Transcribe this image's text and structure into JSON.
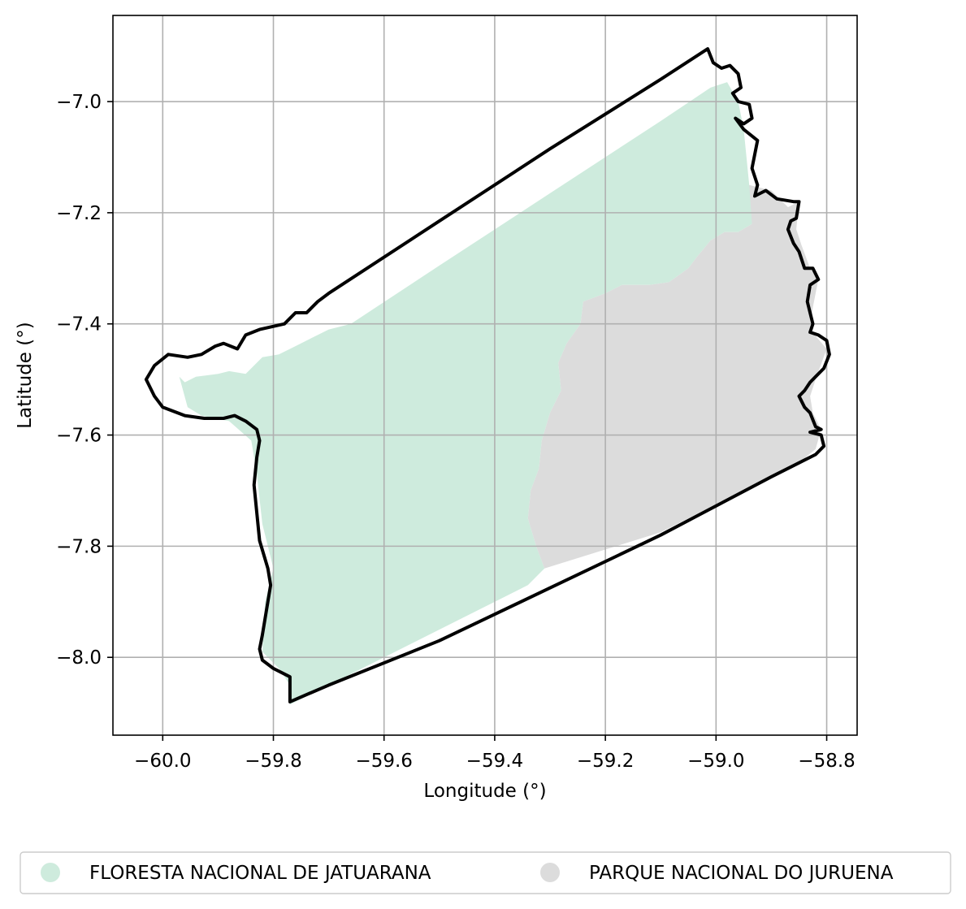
{
  "chart_data": {
    "type": "map",
    "xlabel": "Longitude (°)",
    "ylabel": "Latitude (°)",
    "xlim": [
      -60.09,
      -58.745
    ],
    "ylim": [
      -8.14,
      -6.845
    ],
    "x_ticks": [
      {
        "value": -60.0,
        "label": "−60.0"
      },
      {
        "value": -59.8,
        "label": "−59.8"
      },
      {
        "value": -59.6,
        "label": "−59.6"
      },
      {
        "value": -59.4,
        "label": "−59.4"
      },
      {
        "value": -59.2,
        "label": "−59.2"
      },
      {
        "value": -59.0,
        "label": "−59.0"
      },
      {
        "value": -58.8,
        "label": "−58.8"
      }
    ],
    "y_ticks": [
      {
        "value": -7.0,
        "label": "−7.0"
      },
      {
        "value": -7.2,
        "label": "−7.2"
      },
      {
        "value": -7.4,
        "label": "−7.4"
      },
      {
        "value": -7.6,
        "label": "−7.6"
      },
      {
        "value": -7.8,
        "label": "−7.8"
      },
      {
        "value": -8.0,
        "label": "−8.0"
      }
    ],
    "grid": true,
    "legend_position": "bottom",
    "series": [
      {
        "name": "FLORESTA NACIONAL DE JATUARANA",
        "color": "#ceebdd",
        "polygon": [
          [
            -59.97,
            -7.495
          ],
          [
            -59.96,
            -7.505
          ],
          [
            -59.94,
            -7.495
          ],
          [
            -59.9,
            -7.49
          ],
          [
            -59.88,
            -7.485
          ],
          [
            -59.85,
            -7.49
          ],
          [
            -59.82,
            -7.46
          ],
          [
            -59.79,
            -7.455
          ],
          [
            -59.76,
            -7.44
          ],
          [
            -59.73,
            -7.425
          ],
          [
            -59.7,
            -7.41
          ],
          [
            -59.66,
            -7.4
          ],
          [
            -59.5,
            -7.295
          ],
          [
            -59.3,
            -7.165
          ],
          [
            -59.1,
            -7.035
          ],
          [
            -59.01,
            -6.975
          ],
          [
            -58.98,
            -6.965
          ],
          [
            -58.96,
            -7.0
          ],
          [
            -58.95,
            -7.05
          ],
          [
            -58.945,
            -7.1
          ],
          [
            -58.94,
            -7.15
          ],
          [
            -58.93,
            -7.18
          ],
          [
            -58.935,
            -7.22
          ],
          [
            -58.96,
            -7.235
          ],
          [
            -58.985,
            -7.235
          ],
          [
            -59.01,
            -7.25
          ],
          [
            -59.035,
            -7.28
          ],
          [
            -59.05,
            -7.3
          ],
          [
            -59.085,
            -7.325
          ],
          [
            -59.12,
            -7.33
          ],
          [
            -59.17,
            -7.33
          ],
          [
            -59.2,
            -7.345
          ],
          [
            -59.24,
            -7.36
          ],
          [
            -59.245,
            -7.4
          ],
          [
            -59.27,
            -7.435
          ],
          [
            -59.285,
            -7.47
          ],
          [
            -59.28,
            -7.52
          ],
          [
            -59.3,
            -7.56
          ],
          [
            -59.315,
            -7.61
          ],
          [
            -59.32,
            -7.66
          ],
          [
            -59.335,
            -7.7
          ],
          [
            -59.34,
            -7.75
          ],
          [
            -59.325,
            -7.8
          ],
          [
            -59.31,
            -7.84
          ],
          [
            -59.34,
            -7.87
          ],
          [
            -59.6,
            -8.0
          ],
          [
            -59.77,
            -8.085
          ],
          [
            -59.77,
            -8.05
          ],
          [
            -59.79,
            -8.02
          ],
          [
            -59.82,
            -7.99
          ],
          [
            -59.815,
            -7.9
          ],
          [
            -59.8,
            -7.84
          ],
          [
            -59.82,
            -7.76
          ],
          [
            -59.83,
            -7.67
          ],
          [
            -59.84,
            -7.61
          ],
          [
            -59.88,
            -7.575
          ],
          [
            -59.93,
            -7.565
          ],
          [
            -59.955,
            -7.55
          ]
        ]
      },
      {
        "name": "PARQUE NACIONAL DO JURUENA",
        "color": "#dcdcdc",
        "polygon": [
          [
            -58.935,
            -7.22
          ],
          [
            -58.94,
            -7.15
          ],
          [
            -58.9,
            -7.16
          ],
          [
            -58.87,
            -7.19
          ],
          [
            -58.85,
            -7.18
          ],
          [
            -58.855,
            -7.23
          ],
          [
            -58.845,
            -7.26
          ],
          [
            -58.83,
            -7.3
          ],
          [
            -58.815,
            -7.32
          ],
          [
            -58.825,
            -7.37
          ],
          [
            -58.83,
            -7.41
          ],
          [
            -58.8,
            -7.445
          ],
          [
            -58.82,
            -7.5
          ],
          [
            -58.83,
            -7.53
          ],
          [
            -58.825,
            -7.56
          ],
          [
            -58.81,
            -7.59
          ],
          [
            -58.82,
            -7.625
          ],
          [
            -58.85,
            -7.65
          ],
          [
            -58.86,
            -7.655
          ],
          [
            -58.95,
            -7.7
          ],
          [
            -59.1,
            -7.775
          ],
          [
            -59.31,
            -7.84
          ],
          [
            -59.325,
            -7.8
          ],
          [
            -59.34,
            -7.75
          ],
          [
            -59.335,
            -7.7
          ],
          [
            -59.32,
            -7.66
          ],
          [
            -59.315,
            -7.61
          ],
          [
            -59.3,
            -7.56
          ],
          [
            -59.28,
            -7.52
          ],
          [
            -59.285,
            -7.47
          ],
          [
            -59.27,
            -7.435
          ],
          [
            -59.245,
            -7.4
          ],
          [
            -59.24,
            -7.36
          ],
          [
            -59.2,
            -7.345
          ],
          [
            -59.17,
            -7.33
          ],
          [
            -59.12,
            -7.33
          ],
          [
            -59.085,
            -7.325
          ],
          [
            -59.05,
            -7.3
          ],
          [
            -59.035,
            -7.28
          ],
          [
            -59.01,
            -7.25
          ],
          [
            -58.985,
            -7.235
          ],
          [
            -58.96,
            -7.235
          ]
        ]
      }
    ],
    "outline": {
      "color": "#000000",
      "polygon": [
        [
          -60.03,
          -7.5
        ],
        [
          -60.015,
          -7.475
        ],
        [
          -59.99,
          -7.455
        ],
        [
          -59.955,
          -7.46
        ],
        [
          -59.93,
          -7.455
        ],
        [
          -59.905,
          -7.44
        ],
        [
          -59.89,
          -7.435
        ],
        [
          -59.865,
          -7.445
        ],
        [
          -59.85,
          -7.42
        ],
        [
          -59.825,
          -7.41
        ],
        [
          -59.78,
          -7.4
        ],
        [
          -59.76,
          -7.38
        ],
        [
          -59.74,
          -7.38
        ],
        [
          -59.72,
          -7.36
        ],
        [
          -59.7,
          -7.345
        ],
        [
          -59.5,
          -7.215
        ],
        [
          -59.3,
          -7.085
        ],
        [
          -59.1,
          -6.96
        ],
        [
          -59.015,
          -6.905
        ],
        [
          -59.005,
          -6.93
        ],
        [
          -58.99,
          -6.94
        ],
        [
          -58.975,
          -6.935
        ],
        [
          -58.96,
          -6.95
        ],
        [
          -58.955,
          -6.975
        ],
        [
          -58.97,
          -6.985
        ],
        [
          -58.96,
          -7.0
        ],
        [
          -58.94,
          -7.005
        ],
        [
          -58.935,
          -7.03
        ],
        [
          -58.95,
          -7.04
        ],
        [
          -58.965,
          -7.03
        ],
        [
          -58.95,
          -7.05
        ],
        [
          -58.925,
          -7.07
        ],
        [
          -58.935,
          -7.12
        ],
        [
          -58.925,
          -7.15
        ],
        [
          -58.93,
          -7.17
        ],
        [
          -58.91,
          -7.16
        ],
        [
          -58.89,
          -7.175
        ],
        [
          -58.86,
          -7.18
        ],
        [
          -58.85,
          -7.18
        ],
        [
          -58.855,
          -7.21
        ],
        [
          -58.865,
          -7.215
        ],
        [
          -58.87,
          -7.23
        ],
        [
          -58.86,
          -7.255
        ],
        [
          -58.85,
          -7.27
        ],
        [
          -58.84,
          -7.3
        ],
        [
          -58.825,
          -7.3
        ],
        [
          -58.815,
          -7.32
        ],
        [
          -58.83,
          -7.33
        ],
        [
          -58.835,
          -7.36
        ],
        [
          -58.83,
          -7.38
        ],
        [
          -58.825,
          -7.4
        ],
        [
          -58.83,
          -7.415
        ],
        [
          -58.815,
          -7.42
        ],
        [
          -58.8,
          -7.43
        ],
        [
          -58.795,
          -7.455
        ],
        [
          -58.805,
          -7.48
        ],
        [
          -58.82,
          -7.495
        ],
        [
          -58.83,
          -7.505
        ],
        [
          -58.84,
          -7.52
        ],
        [
          -58.85,
          -7.53
        ],
        [
          -58.84,
          -7.55
        ],
        [
          -58.83,
          -7.56
        ],
        [
          -58.82,
          -7.585
        ],
        [
          -58.81,
          -7.59
        ],
        [
          -58.83,
          -7.595
        ],
        [
          -58.81,
          -7.6
        ],
        [
          -58.805,
          -7.62
        ],
        [
          -58.82,
          -7.635
        ],
        [
          -58.84,
          -7.645
        ],
        [
          -58.86,
          -7.655
        ],
        [
          -58.9,
          -7.675
        ],
        [
          -59.1,
          -7.78
        ],
        [
          -59.3,
          -7.875
        ],
        [
          -59.5,
          -7.97
        ],
        [
          -59.7,
          -8.05
        ],
        [
          -59.77,
          -8.08
        ],
        [
          -59.77,
          -8.035
        ],
        [
          -59.8,
          -8.02
        ],
        [
          -59.82,
          -8.005
        ],
        [
          -59.825,
          -7.985
        ],
        [
          -59.82,
          -7.96
        ],
        [
          -59.815,
          -7.93
        ],
        [
          -59.81,
          -7.9
        ],
        [
          -59.805,
          -7.87
        ],
        [
          -59.81,
          -7.84
        ],
        [
          -59.825,
          -7.79
        ],
        [
          -59.83,
          -7.74
        ],
        [
          -59.835,
          -7.69
        ],
        [
          -59.83,
          -7.64
        ],
        [
          -59.825,
          -7.61
        ],
        [
          -59.83,
          -7.59
        ],
        [
          -59.85,
          -7.575
        ],
        [
          -59.87,
          -7.565
        ],
        [
          -59.89,
          -7.57
        ],
        [
          -59.925,
          -7.57
        ],
        [
          -59.96,
          -7.565
        ],
        [
          -60.0,
          -7.55
        ],
        [
          -60.015,
          -7.53
        ]
      ]
    }
  }
}
